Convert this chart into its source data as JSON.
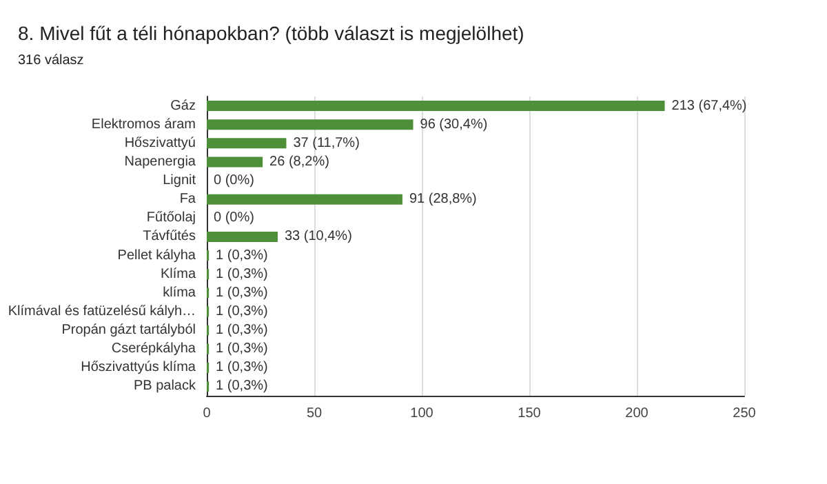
{
  "chart_data": {
    "type": "bar",
    "orientation": "horizontal",
    "title": "8. Mivel fűt a téli hónapokban? (több választ is megjelölhet)",
    "subtitle": "316 válasz",
    "categories": [
      "Gáz",
      "Elektromos áram",
      "Hőszivattyú",
      "Napenergia",
      "Lignit",
      "Fa",
      "Fűtőolaj",
      "Távfűtés",
      "Pellet kályha",
      "Klíma",
      "klíma",
      "Klímával és fatüzelésű kályh…",
      "Propán gázt tartályból",
      "Cserépkályha",
      "Hőszivattyús klíma",
      "PB palack"
    ],
    "values": [
      213,
      96,
      37,
      26,
      0,
      91,
      0,
      33,
      1,
      1,
      1,
      1,
      1,
      1,
      1,
      1
    ],
    "value_labels": [
      "213 (67,4%)",
      "96 (30,4%)",
      "37 (11,7%)",
      "26 (8,2%)",
      "0 (0%)",
      "91 (28,8%)",
      "0 (0%)",
      "33 (10,4%)",
      "1 (0,3%)",
      "1 (0,3%)",
      "1 (0,3%)",
      "1 (0,3%)",
      "1 (0,3%)",
      "1 (0,3%)",
      "1 (0,3%)",
      "1 (0,3%)"
    ],
    "color": "#4e8f3a",
    "xlim": [
      0,
      250
    ],
    "xticks": [
      0,
      50,
      100,
      150,
      200,
      250
    ],
    "grid": "x"
  }
}
